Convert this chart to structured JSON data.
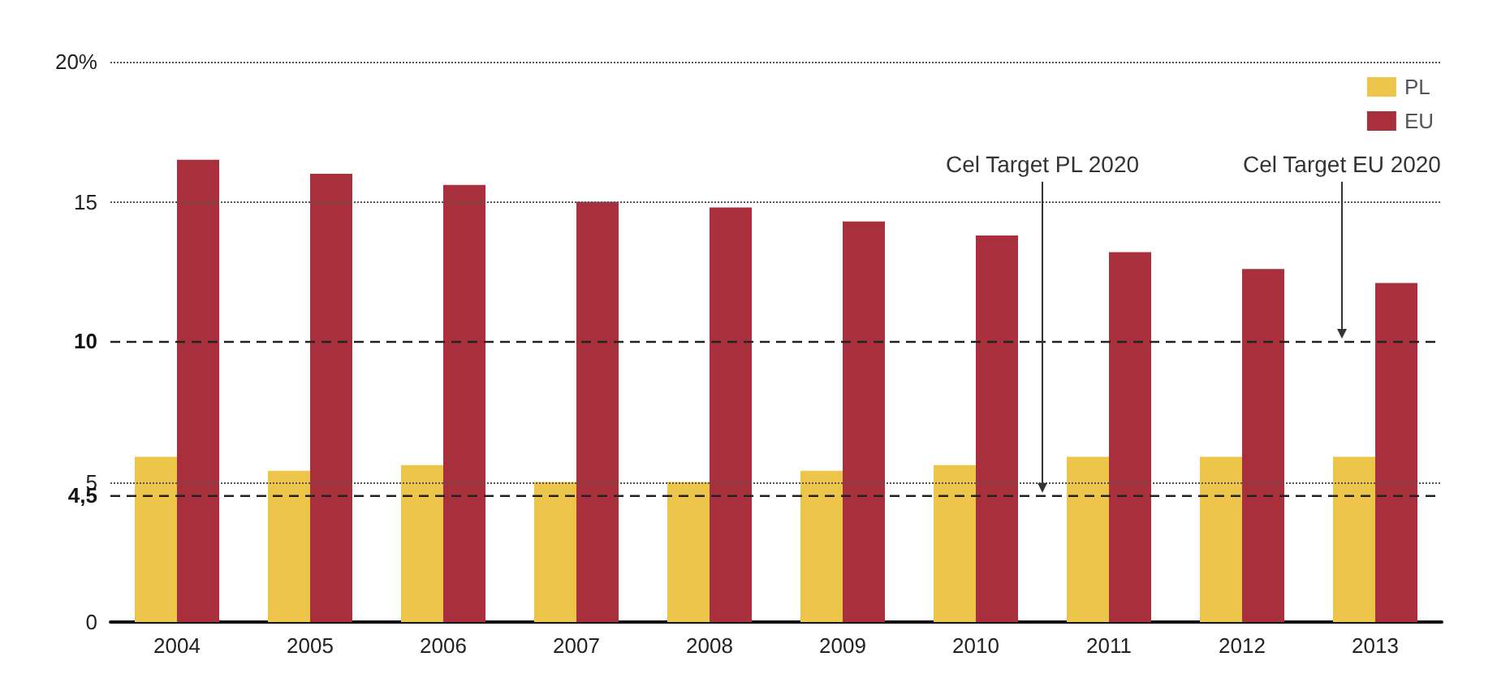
{
  "chart_data": {
    "type": "bar",
    "categories": [
      "2004",
      "2005",
      "2006",
      "2007",
      "2008",
      "2009",
      "2010",
      "2011",
      "2012",
      "2013"
    ],
    "series": [
      {
        "name": "PL",
        "color": "#ecc54a",
        "values": [
          5.9,
          5.4,
          5.6,
          5.0,
          5.0,
          5.4,
          5.6,
          5.9,
          5.9,
          5.9
        ]
      },
      {
        "name": "EU",
        "color": "#a8303c",
        "values": [
          16.5,
          16.0,
          15.6,
          15.0,
          14.8,
          14.3,
          13.8,
          13.2,
          12.6,
          12.1
        ]
      }
    ],
    "ylim": [
      0,
      20
    ],
    "yticks": [
      0,
      5,
      15,
      {
        "value": 20,
        "label": "20%"
      }
    ],
    "grid": "y",
    "legend": "top right",
    "ref_lines": [
      {
        "axis": "y",
        "value": 4.5,
        "label": "4,5",
        "line_style": "dashed",
        "color": "#222222"
      },
      {
        "axis": "y",
        "value": 10,
        "label": "10",
        "line_style": "dashed",
        "color": "#222222"
      }
    ],
    "annotations": [
      {
        "text": "Cel Target PL 2020",
        "y": 4.5
      },
      {
        "text": "Cel Target EU 2020",
        "y": 10
      }
    ]
  }
}
